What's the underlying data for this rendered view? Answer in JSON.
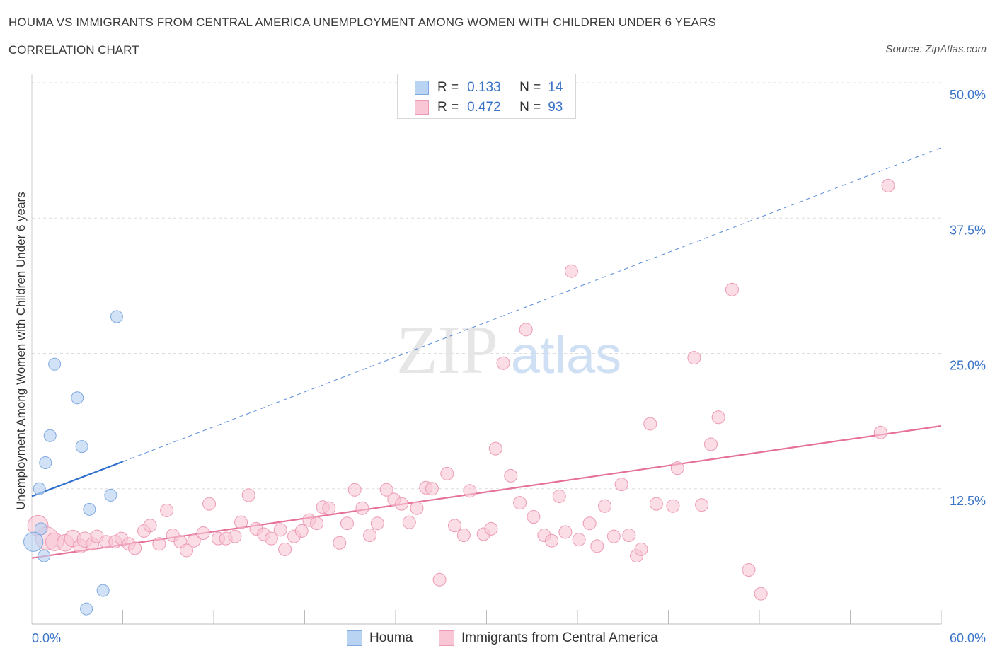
{
  "title": "HOUMA VS IMMIGRANTS FROM CENTRAL AMERICA UNEMPLOYMENT AMONG WOMEN WITH CHILDREN UNDER 6 YEARS",
  "subtitle": "CORRELATION CHART",
  "source": "Source: ZipAtlas.com",
  "watermark": {
    "zip": "ZIP",
    "atlas": "atlas"
  },
  "legend": {
    "houma": {
      "r_label": "R =",
      "r_value": "0.133",
      "n_label": "N =",
      "n_value": "14"
    },
    "immigrants": {
      "r_label": "R =",
      "r_value": "0.472",
      "n_label": "N =",
      "n_value": "93"
    }
  },
  "bottom_legend": {
    "houma": "Houma",
    "immigrants": "Immigrants from Central America"
  },
  "colors": {
    "houma_fill": "#b9d3f3",
    "houma_stroke": "#7fa9e0",
    "houma_line": "#2f6fce",
    "immigrants_fill": "#f8c6d5",
    "immigrants_stroke": "#ec9ab3",
    "immigrants_line": "#e57098",
    "axis_text": "#3a74c8",
    "grid": "#dddddd"
  },
  "chart_data": {
    "type": "scatter",
    "title": "HOUMA VS IMMIGRANTS FROM CENTRAL AMERICA UNEMPLOYMENT AMONG WOMEN WITH CHILDREN UNDER 6 YEARS",
    "xlabel": "",
    "ylabel": "Unemployment Among Women with Children Under 6 years",
    "xlim": [
      0,
      60
    ],
    "ylim": [
      0,
      50
    ],
    "x_tick_labels": [
      "0.0%",
      "60.0%"
    ],
    "y_ticks": [
      12.5,
      25.0,
      37.5,
      50.0
    ],
    "y_tick_labels": [
      "12.5%",
      "25.0%",
      "37.5%",
      "50.0%"
    ],
    "grid": true,
    "legend_position": "top-center",
    "series": [
      {
        "name": "Houma",
        "R": 0.133,
        "N": 14,
        "trend": {
          "x_start": 0,
          "y_start": 11.8,
          "x_solid_end": 6.0,
          "y_solid_end": 15.0,
          "x_end": 60,
          "y_end": 44.0
        },
        "points": [
          [
            0.1,
            7.6,
            1.6
          ],
          [
            0.5,
            12.5,
            1
          ],
          [
            0.6,
            8.8,
            1
          ],
          [
            0.8,
            6.3,
            1
          ],
          [
            0.9,
            14.9,
            1
          ],
          [
            1.2,
            17.4,
            1
          ],
          [
            1.5,
            24.0,
            1
          ],
          [
            3.0,
            20.9,
            1
          ],
          [
            3.3,
            16.4,
            1
          ],
          [
            3.8,
            10.6,
            1
          ],
          [
            5.2,
            11.9,
            1
          ],
          [
            5.6,
            28.4,
            1
          ],
          [
            4.7,
            3.1,
            1
          ],
          [
            3.6,
            1.4,
            1
          ]
        ]
      },
      {
        "name": "Immigrants from Central America",
        "R": 0.472,
        "N": 93,
        "trend": {
          "x_start": 0,
          "y_start": 6.1,
          "x_end": 60,
          "y_end": 18.3
        },
        "points": [
          [
            0.4,
            9.1,
            1.6
          ],
          [
            1.0,
            7.9,
            1.8
          ],
          [
            1.5,
            7.6,
            1.4
          ],
          [
            2.2,
            7.5,
            1.3
          ],
          [
            2.7,
            7.9,
            1.3
          ],
          [
            3.2,
            7.2,
            1.1
          ],
          [
            3.5,
            7.8,
            1.2
          ],
          [
            4.0,
            7.4,
            1
          ],
          [
            4.3,
            8.1,
            1
          ],
          [
            4.9,
            7.6,
            1
          ],
          [
            5.5,
            7.6,
            1
          ],
          [
            5.9,
            7.9,
            1
          ],
          [
            6.4,
            7.4,
            1
          ],
          [
            6.8,
            7.0,
            1
          ],
          [
            7.4,
            8.6,
            1
          ],
          [
            7.8,
            9.1,
            1
          ],
          [
            8.4,
            7.4,
            1
          ],
          [
            8.9,
            10.5,
            1
          ],
          [
            9.3,
            8.2,
            1
          ],
          [
            9.8,
            7.6,
            1
          ],
          [
            10.2,
            6.8,
            1
          ],
          [
            10.7,
            7.7,
            1
          ],
          [
            11.3,
            8.4,
            1
          ],
          [
            11.7,
            11.1,
            1
          ],
          [
            12.3,
            7.9,
            1
          ],
          [
            12.8,
            7.9,
            1
          ],
          [
            13.4,
            8.1,
            1
          ],
          [
            13.8,
            9.4,
            1
          ],
          [
            14.3,
            11.9,
            1
          ],
          [
            14.8,
            8.8,
            1
          ],
          [
            15.3,
            8.3,
            1
          ],
          [
            15.8,
            7.9,
            1
          ],
          [
            16.4,
            8.7,
            1
          ],
          [
            16.7,
            6.9,
            1
          ],
          [
            17.3,
            8.1,
            1
          ],
          [
            17.8,
            8.6,
            1
          ],
          [
            18.3,
            9.6,
            1
          ],
          [
            18.8,
            9.3,
            1
          ],
          [
            19.2,
            10.8,
            1
          ],
          [
            19.6,
            10.7,
            1
          ],
          [
            20.3,
            7.5,
            1
          ],
          [
            20.8,
            9.3,
            1
          ],
          [
            21.3,
            12.4,
            1
          ],
          [
            21.8,
            10.7,
            1
          ],
          [
            22.3,
            8.2,
            1
          ],
          [
            22.8,
            9.3,
            1
          ],
          [
            23.4,
            12.4,
            1
          ],
          [
            23.9,
            11.5,
            1
          ],
          [
            24.4,
            11.1,
            1
          ],
          [
            24.9,
            9.4,
            1
          ],
          [
            25.4,
            10.7,
            1
          ],
          [
            26.0,
            12.6,
            1
          ],
          [
            26.4,
            12.5,
            1
          ],
          [
            26.9,
            4.1,
            1
          ],
          [
            27.4,
            13.9,
            1
          ],
          [
            27.9,
            9.1,
            1
          ],
          [
            28.5,
            8.2,
            1
          ],
          [
            28.9,
            12.3,
            1
          ],
          [
            29.8,
            8.3,
            1
          ],
          [
            30.3,
            8.8,
            1
          ],
          [
            30.6,
            16.2,
            1
          ],
          [
            31.1,
            24.1,
            1
          ],
          [
            31.6,
            13.7,
            1
          ],
          [
            32.2,
            11.2,
            1
          ],
          [
            32.6,
            27.2,
            1
          ],
          [
            33.1,
            9.9,
            1
          ],
          [
            33.8,
            8.2,
            1
          ],
          [
            34.3,
            7.7,
            1
          ],
          [
            34.8,
            11.8,
            1
          ],
          [
            35.2,
            8.5,
            1
          ],
          [
            35.6,
            32.6,
            1
          ],
          [
            36.1,
            7.8,
            1
          ],
          [
            36.8,
            9.3,
            1
          ],
          [
            37.3,
            7.2,
            1
          ],
          [
            37.8,
            10.9,
            1
          ],
          [
            38.4,
            8.1,
            1
          ],
          [
            38.9,
            12.9,
            1
          ],
          [
            39.4,
            8.2,
            1
          ],
          [
            39.9,
            6.3,
            1
          ],
          [
            40.2,
            6.9,
            1
          ],
          [
            40.8,
            18.5,
            1
          ],
          [
            41.2,
            11.1,
            1
          ],
          [
            42.3,
            10.9,
            1
          ],
          [
            42.6,
            14.4,
            1
          ],
          [
            43.7,
            24.6,
            1
          ],
          [
            44.2,
            11.0,
            1
          ],
          [
            44.8,
            16.6,
            1
          ],
          [
            45.3,
            19.1,
            1
          ],
          [
            46.2,
            30.9,
            1
          ],
          [
            47.3,
            5.0,
            1
          ],
          [
            48.1,
            2.8,
            1
          ],
          [
            56.0,
            17.7,
            1
          ],
          [
            56.5,
            40.5,
            1
          ]
        ]
      }
    ]
  }
}
